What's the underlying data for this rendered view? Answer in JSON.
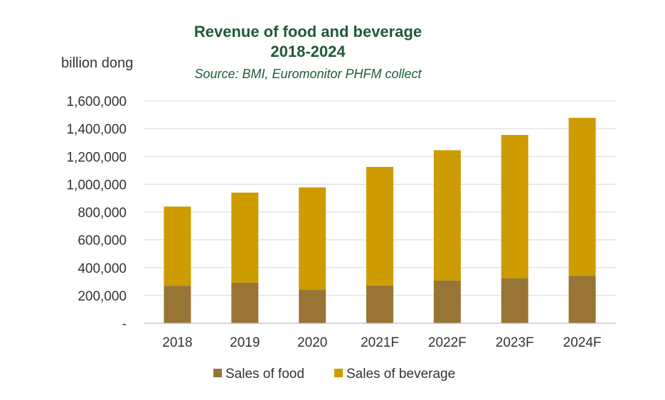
{
  "colors": {
    "food": "#987534",
    "beverage": "#cc9c00",
    "title": "#1f5a37"
  },
  "chart_data": {
    "type": "bar",
    "stacked": true,
    "title_line1": "Revenue of food and beverage",
    "title_line2": "2018-2024",
    "subtitle": "Source: BMI, Euromonitor PHFM collect",
    "ylabel": "billion dong",
    "categories": [
      "2018",
      "2019",
      "2020",
      "2021F",
      "2022F",
      "2023F",
      "2024F"
    ],
    "series": [
      {
        "name": "Sales of food",
        "values": [
          270000,
          293000,
          240000,
          272000,
          308000,
          325000,
          342000
        ]
      },
      {
        "name": "Sales of beverage",
        "values": [
          570000,
          647000,
          738000,
          853000,
          937000,
          1030000,
          1136000
        ]
      }
    ],
    "ylim": [
      0,
      1600000
    ],
    "yticks": [
      "-",
      "200,000",
      "400,000",
      "600,000",
      "800,000",
      "1,000,000",
      "1,200,000",
      "1,400,000",
      "1,600,000"
    ],
    "legend_position": "bottom"
  }
}
